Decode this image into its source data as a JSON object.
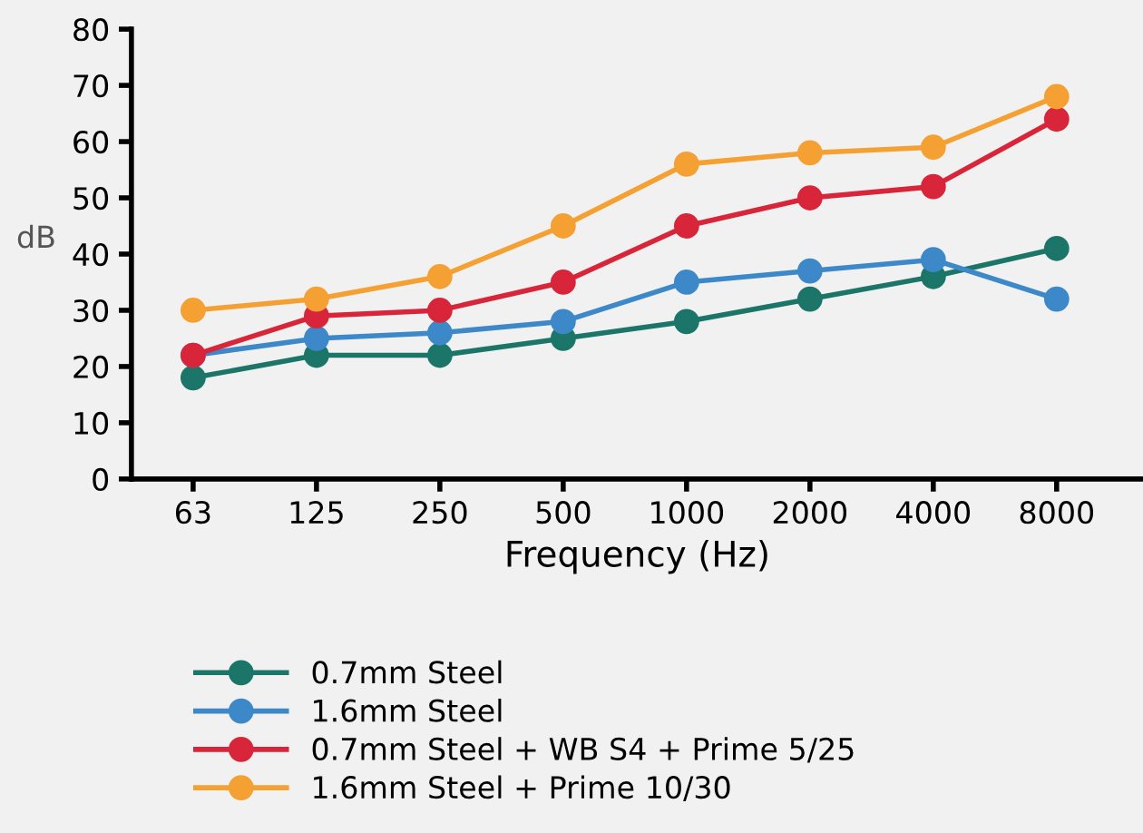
{
  "chart_data": {
    "type": "line",
    "xlabel": "Frequency (Hz)",
    "ylabel": "dB",
    "categories": [
      "63",
      "125",
      "250",
      "500",
      "1000",
      "2000",
      "4000",
      "8000"
    ],
    "ylim": [
      0,
      80
    ],
    "yticks": [
      0,
      10,
      20,
      30,
      40,
      50,
      60,
      70,
      80
    ],
    "grid": false,
    "legend": "bottom",
    "marker": "circle",
    "line_style": "solid",
    "series": [
      {
        "name": "0.7mm Steel",
        "color": "#1b7568",
        "values": [
          18,
          22,
          22,
          25,
          28,
          32,
          36,
          41
        ]
      },
      {
        "name": "1.6mm Steel",
        "color": "#3d88c8",
        "values": [
          22,
          25,
          26,
          28,
          35,
          37,
          39,
          32
        ]
      },
      {
        "name": "0.7mm Steel + WB S4 + Prime 5/25",
        "color": "#d8253a",
        "values": [
          22,
          29,
          30,
          35,
          45,
          50,
          52,
          64
        ]
      },
      {
        "name": "1.6mm Steel + Prime 10/30",
        "color": "#f5a033",
        "values": [
          30,
          32,
          36,
          45,
          56,
          58,
          59,
          68
        ]
      }
    ]
  }
}
